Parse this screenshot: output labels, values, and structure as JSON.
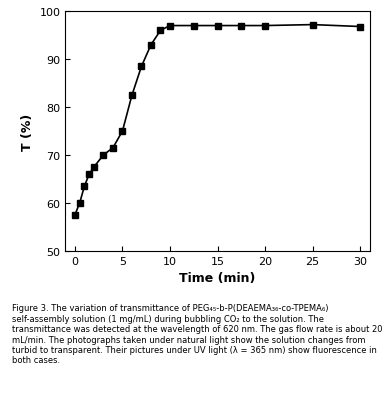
{
  "chart_data": {
    "type": "line",
    "x_label": "Time (min)",
    "y_label": "T (%)",
    "caption": "Figure 3. The variation of transmittance of PEG₄₅-b-P(DEAEMA₃₆-co-TPEMA₆) self-assembly solution (1 mg/mL) during bubbling CO₂ to the solution. The transmittance was detected at the wavelength of 620 nm. The gas flow rate is about 20 mL/min. The photographs taken under natural light show the solution changes from turbid to transparent. Their pictures under UV light (λ = 365 nm) show fluorescence in both cases.",
    "x": [
      0,
      0.5,
      1,
      1.5,
      2,
      3,
      4,
      5,
      6,
      7,
      8,
      9,
      10,
      12.5,
      15,
      17.5,
      20,
      25,
      30
    ],
    "values": [
      57.5,
      60,
      63.5,
      66,
      67.5,
      70,
      71.5,
      75,
      82.5,
      88.5,
      93,
      96,
      97,
      97,
      97,
      97,
      97,
      97.2,
      96.8
    ],
    "color": "#000000",
    "marker": "square",
    "line_style": "solid",
    "xlim": [
      -1,
      31
    ],
    "xticks": [
      0,
      5,
      10,
      15,
      20,
      25,
      30
    ],
    "ylim": [
      50,
      100
    ],
    "yticks": [
      50,
      60,
      70,
      80,
      90,
      100
    ],
    "grid": false
  }
}
